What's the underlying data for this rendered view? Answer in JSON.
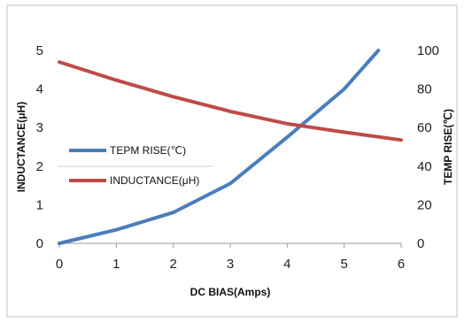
{
  "chart_data": {
    "type": "line",
    "title": "",
    "xlabel": "DC  BIAS(Amps)",
    "ylabel_left": "INDUCTANCE(μH)",
    "ylabel_right": "TEMP RISE(℃)",
    "x": [
      0,
      1,
      2,
      3,
      4,
      5,
      6
    ],
    "xlim": [
      0,
      6
    ],
    "xticks": [
      "0",
      "1",
      "2",
      "3",
      "4",
      "5",
      "6"
    ],
    "ylim_left": [
      0,
      5
    ],
    "yticks_left": [
      "0",
      "1",
      "2",
      "3",
      "4",
      "5"
    ],
    "ylim_right": [
      0,
      100
    ],
    "yticks_right": [
      "0",
      "20",
      "40",
      "60",
      "80",
      "100"
    ],
    "grid": false,
    "legend": "center-left",
    "series": [
      {
        "name": "TEPM RISE(℃)",
        "axis": "right",
        "color": "#4a7ebb",
        "x": [
          0,
          1,
          2,
          3,
          4,
          5,
          5.6
        ],
        "values": [
          0,
          7,
          16,
          31,
          55,
          80,
          100
        ]
      },
      {
        "name": "INDUCTANCE(μH)",
        "axis": "left",
        "color": "#be4b48",
        "x": [
          0,
          1,
          2,
          3,
          4,
          5,
          6
        ],
        "values": [
          4.7,
          4.23,
          3.8,
          3.42,
          3.1,
          2.88,
          2.68
        ]
      }
    ]
  }
}
